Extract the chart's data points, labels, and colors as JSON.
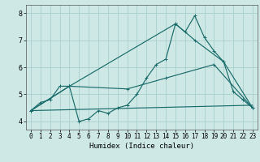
{
  "xlabel": "Humidex (Indice chaleur)",
  "background_color": "#cde8e5",
  "grid_color": "#aacfcc",
  "line_color": "#1a6b6b",
  "xlim": [
    -0.5,
    23.5
  ],
  "ylim": [
    3.7,
    8.3
  ],
  "xticks": [
    0,
    1,
    2,
    3,
    4,
    5,
    6,
    7,
    8,
    9,
    10,
    11,
    12,
    13,
    14,
    15,
    16,
    17,
    18,
    19,
    20,
    21,
    22,
    23
  ],
  "yticks": [
    4,
    5,
    6,
    7,
    8
  ],
  "line1_x": [
    0,
    1,
    2,
    3,
    4,
    5,
    6,
    7,
    8,
    9,
    10,
    11,
    12,
    13,
    14,
    15,
    16,
    17,
    18,
    19,
    20,
    21,
    22,
    23
  ],
  "line1_y": [
    4.4,
    4.7,
    4.8,
    5.3,
    5.3,
    4.0,
    4.1,
    4.4,
    4.3,
    4.5,
    4.6,
    5.0,
    5.6,
    6.1,
    6.3,
    7.6,
    7.3,
    7.9,
    7.1,
    6.6,
    6.2,
    5.1,
    4.8,
    4.5
  ],
  "line2_x": [
    0,
    4,
    15,
    17,
    20,
    23
  ],
  "line2_y": [
    4.4,
    5.3,
    7.6,
    7.0,
    6.2,
    4.5
  ],
  "line3_x": [
    0,
    4,
    10,
    14,
    19,
    23
  ],
  "line3_y": [
    4.4,
    5.3,
    5.2,
    5.6,
    6.1,
    4.5
  ],
  "line4_x": [
    0,
    23
  ],
  "line4_y": [
    4.4,
    4.6
  ]
}
